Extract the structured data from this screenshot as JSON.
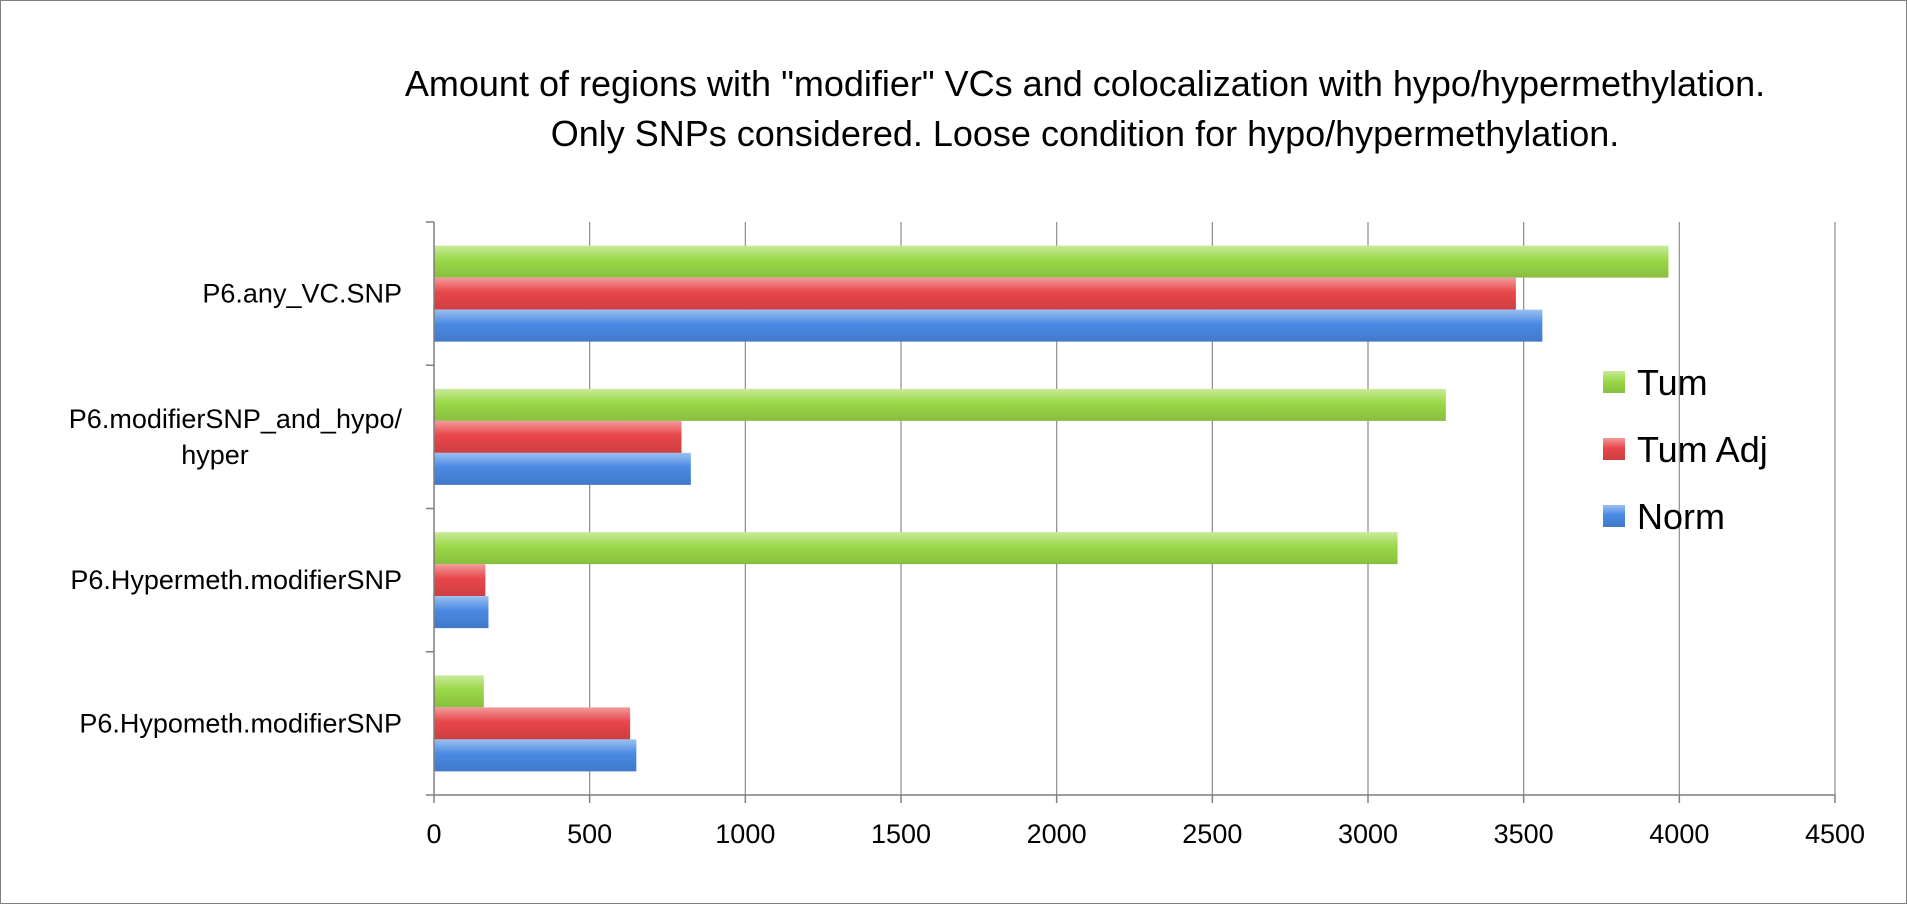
{
  "chart_data": {
    "type": "bar",
    "orientation": "horizontal",
    "title": [
      "Amount of regions with \"modifier\" VCs and colocalization with hypo/hypermethylation.",
      "Only SNPs considered. Loose condition for hypo/hypermethylation."
    ],
    "categories": [
      [
        "P6.any_VC.SNP"
      ],
      [
        "P6.modifierSNP_and_hypo/",
        "hyper"
      ],
      [
        "P6.Hypermeth.modifierSNP"
      ],
      [
        "P6.Hypometh.modifierSNP"
      ]
    ],
    "series": [
      {
        "name": "Tum",
        "color": "#9bd848",
        "values": [
          3965,
          3250,
          3095,
          160
        ]
      },
      {
        "name": "Tum Adj",
        "color": "#e9474a",
        "values": [
          3475,
          795,
          165,
          630
        ]
      },
      {
        "name": "Norm",
        "color": "#4a8ae4",
        "values": [
          3560,
          825,
          175,
          650
        ]
      }
    ],
    "legend_order": [
      "Tum",
      "Tum Adj",
      "Norm"
    ],
    "xlim": [
      0,
      4500
    ],
    "xticks": [
      0,
      500,
      1000,
      1500,
      2000,
      2500,
      3000,
      3500,
      4000,
      4500
    ],
    "grid": true,
    "legend_position": "right"
  }
}
